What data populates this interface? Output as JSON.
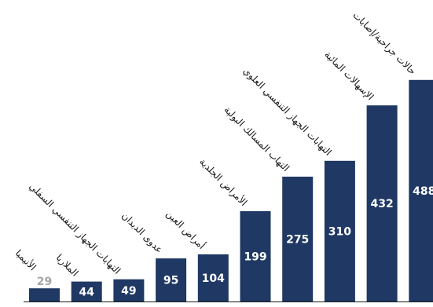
{
  "chart_data": {
    "type": "bar",
    "categories": [
      "الأنيميا",
      "الملاريا",
      "التهابات الجهاز التنفسي السفلي",
      "عدوى الديدان",
      "أمراض العين",
      "الأمراض الجلدية",
      "التهاب المسالك البولية",
      "التهابات الجهاز التنفسي العلوي",
      "الإسهالات المائية",
      "حالات جراحية/إصابات"
    ],
    "values": [
      29,
      44,
      49,
      95,
      104,
      199,
      275,
      310,
      432,
      488
    ],
    "ylim": [
      0,
      500
    ],
    "grid": false,
    "legend": "none",
    "colors": {
      "bar": "#1f3864",
      "value_label": "#ffffff",
      "value_label_outside": "#a6a6a6",
      "category_label": "#1a1a1a"
    }
  }
}
